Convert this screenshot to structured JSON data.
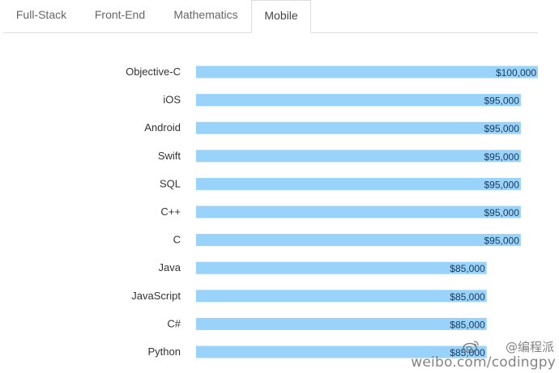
{
  "tabs": [
    {
      "label": "Full-Stack",
      "active": false
    },
    {
      "label": "Front-End",
      "active": false
    },
    {
      "label": "Mathematics",
      "active": false
    },
    {
      "label": "Mobile",
      "active": true
    }
  ],
  "chart_data": {
    "type": "bar",
    "orientation": "horizontal",
    "categories": [
      "Objective-C",
      "iOS",
      "Android",
      "Swift",
      "SQL",
      "C++",
      "C",
      "Java",
      "JavaScript",
      "C#",
      "Python"
    ],
    "values": [
      100000,
      95000,
      95000,
      95000,
      95000,
      95000,
      95000,
      85000,
      85000,
      85000,
      85000
    ],
    "value_labels": [
      "$100,000",
      "$95,000",
      "$95,000",
      "$95,000",
      "$95,000",
      "$95,000",
      "$95,000",
      "$85,000",
      "$85,000",
      "$85,000",
      "$85,000"
    ],
    "title": "",
    "xlabel": "",
    "ylabel": "",
    "xlim": [
      0,
      100000
    ],
    "grid": false,
    "bar_color": "#99d3fa"
  },
  "watermark": {
    "handle": "@编程派",
    "url": "weibo.com/codingpy"
  },
  "colors": {
    "bar": "#99d3fa",
    "tab_border": "#dddddd"
  }
}
